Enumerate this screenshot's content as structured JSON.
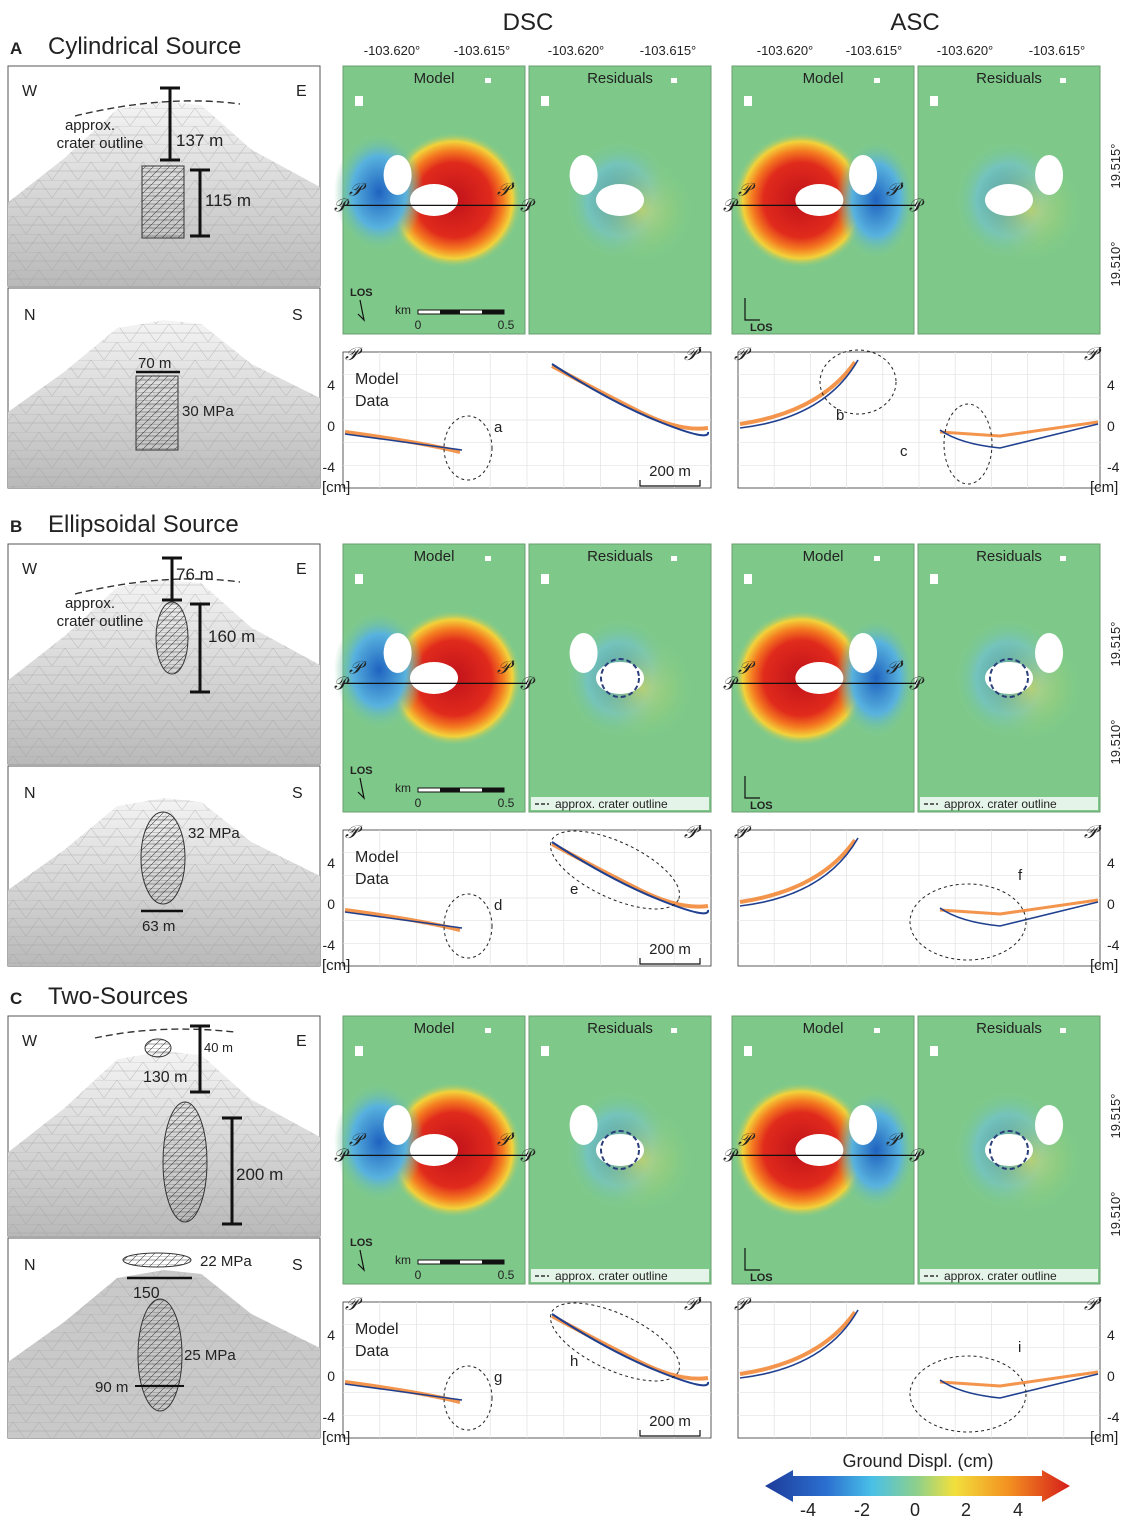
{
  "header": {
    "dsc": "DSC",
    "asc": "ASC",
    "lon_left": "-103.620°",
    "lon_right": "-103.615°",
    "lat_top": "19.515°",
    "lat_bottom": "19.510°"
  },
  "map_labels": {
    "model": "Model",
    "residuals": "Residuals",
    "p": "𝒫",
    "p_prime": "𝒫'",
    "los": "LOS",
    "km": "km",
    "scale_zero": "0",
    "scale_half": "0.5",
    "crater": "approx. crater outline"
  },
  "profile_labels": {
    "model": "Model",
    "data": "Data",
    "unit": "[cm]",
    "scalebar": "200 m",
    "ticks": [
      "4",
      "0",
      "-4"
    ]
  },
  "colors": {
    "model_line": "#1f3f8f",
    "data_points": "#f07a20",
    "map_background": "#7ec98a",
    "uplift": "#d9201a",
    "subsidence": "#2a70c8"
  },
  "panels": [
    {
      "letter": "A",
      "title": "Cylindrical Source",
      "top_view": {
        "w": "W",
        "e": "E",
        "crater_label": [
          "approx.",
          "crater outline"
        ],
        "depth": "137 m",
        "height": "115 m"
      },
      "bottom_view": {
        "n": "N",
        "s": "S",
        "width": "70 m",
        "pressure": "30 MPa"
      },
      "show_crater_legend": false,
      "annotations": [
        "a",
        "b",
        "c"
      ]
    },
    {
      "letter": "B",
      "title": "Ellipsoidal Source",
      "top_view": {
        "w": "W",
        "e": "E",
        "crater_label": [
          "approx.",
          "crater outline"
        ],
        "depth": "76 m",
        "height": "160 m"
      },
      "bottom_view": {
        "n": "N",
        "s": "S",
        "pressure": "32 MPa",
        "width": "63 m"
      },
      "show_crater_legend": true,
      "annotations": [
        "d",
        "e",
        "f"
      ]
    },
    {
      "letter": "C",
      "title": "Two-Sources",
      "top_view": {
        "w": "W",
        "e": "E",
        "small": "40 m",
        "depth": "130 m",
        "height": "200 m"
      },
      "bottom_view": {
        "n": "N",
        "s": "S",
        "p1": "22 MPa",
        "w1": "150",
        "p2": "25 MPa",
        "w2": "90 m"
      },
      "show_crater_legend": true,
      "annotations": [
        "g",
        "h",
        "i"
      ]
    }
  ],
  "colorbar": {
    "title": "Ground Displ. (cm)",
    "ticks": [
      "-4",
      "-2",
      "0",
      "2",
      "4"
    ],
    "range": [
      -4,
      4
    ]
  }
}
